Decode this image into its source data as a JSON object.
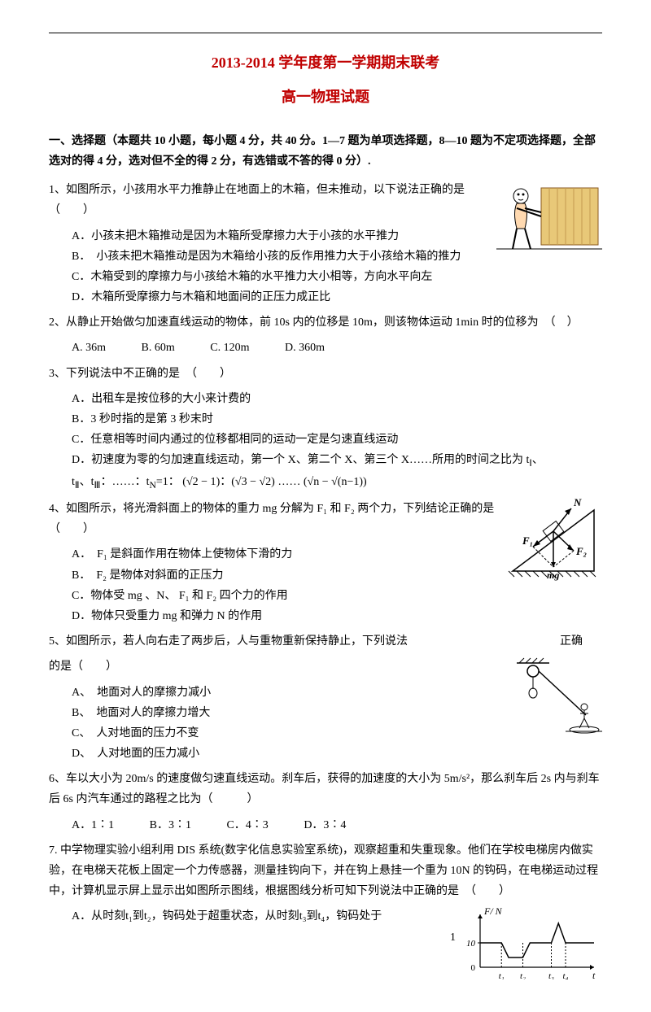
{
  "header": {
    "title": "2013-2014 学年度第一学期期末联考",
    "subtitle": "高一物理试题"
  },
  "section1": {
    "heading": "一、选择题（本题共 10 小题，每小题 4 分，共 40 分。1—7 题为单项选择题，8—10 题为不定项选择题，全部选对的得 4 分，选对但不全的得 2 分，有选错或不答的得 0 分）."
  },
  "q1": {
    "stem": "1、如图所示，小孩用水平力推静止在地面上的木箱，但未推动，以下说法正确的是　（　　）",
    "A": "A．小孩未把木箱推动是因为木箱所受摩擦力大于小孩的水平推力",
    "B": "B．　小孩未把木箱推动是因为木箱给小孩的反作用推力大于小孩给木箱的推力",
    "C": "C．木箱受到的摩擦力与小孩给木箱的水平推力大小相等，方向水平向左",
    "D": "D．木箱所受摩擦力与木箱和地面间的正压力成正比"
  },
  "q2": {
    "stem": "2、从静止开始做匀加速直线运动的物体，前 10s 内的位移是 10m，则该物体运动 1min 时的位移为　（　）",
    "A": "A. 36m",
    "B": "B. 60m",
    "C": "C. 120m",
    "D": "D. 360m"
  },
  "q3": {
    "stem": "3、下列说法中不正确的是　（　　）",
    "A": "A．出租车是按位移的大小来计费的",
    "B": "B．3 秒时指的是第 3 秒末时",
    "C": "C．任意相等时间内通过的位移都相同的运动一定是匀速直线运动",
    "D_pre": "D．初速度为零的匀加速直线运动，第一个 X、第二个 X、第三个 X……所用的时间之比为 t",
    "D_line2_pre": "t",
    "D_line2_mid": "、t",
    "D_line2_post": "：……：t",
    "D_eq": "=1：",
    "D_r1a": "√2",
    "D_r1b": " − 1",
    "D_r2a": "√3",
    "D_r2b": " − √2",
    "D_dots": " …… ",
    "D_rna": "√n",
    "D_rnb": " − √(n−1)"
  },
  "q4": {
    "stem": "4、如图所示，将光滑斜面上的物体的重力 mg 分解为 F₁ 和 F₂ 两个力，下列结论正确的是　（　　）",
    "A": "A．　F₁ 是斜面作用在物体上使物体下滑的力",
    "B": "B．　F₂ 是物体对斜面的正压力",
    "C": "C．物体受 mg 、N、 F₁ 和 F₂ 四个力的作用",
    "D": "D．物体只受重力 mg 和弹力 N 的作用"
  },
  "q5": {
    "stem_a": "5、如图所示，若人向右走了两步后，人与重物重新保持静止，下列说法",
    "stem_b": "正确",
    "stem2": "的是（　　）",
    "A": "A、　地面对人的摩擦力减小",
    "B": "B、　地面对人的摩擦力增大",
    "C": "C、　人对地面的压力不变",
    "D": "D、　人对地面的压力减小"
  },
  "q6": {
    "stem": "6、车以大小为 20m/s 的速度做匀速直线运动。刹车后，获得的加速度的大小为 5m/s²，那么刹车后 2s 内与刹车后 6s 内汽车通过的路程之比为（　　　）",
    "A": "A．1∶1",
    "B": "B．3∶1",
    "C": "C．4∶3",
    "D": "D．3∶4"
  },
  "q7": {
    "stem": "7. 中学物理实验小组利用 DIS 系统(数字化信息实验室系统)，观察超重和失重现象。他们在学校电梯房内做实验，在电梯天花板上固定一个力传感器，测量挂钩向下，并在钩上悬挂一个重为 10N 的钩码，在电梯运动过程中，计算机显示屏上显示出如图所示图线，根据图线分析可知下列说法中正确的是　（　　）",
    "A_pre": "A．从时刻",
    "A_t1": "t₁",
    "A_mid1": "到",
    "A_t2": "t₂",
    "A_mid2": "，钩码处于超重状态，从时刻",
    "A_t3": "t₃",
    "A_mid3": "到",
    "A_t4": "t₄",
    "A_post": "，钩码处于"
  },
  "chart": {
    "ylabel": "F/ N",
    "y_tick": "10",
    "y_zero": "0",
    "x_t1": "t₁",
    "x_t2": "t₂",
    "x_t3": "t₃",
    "x_t4": "t₄",
    "xlabel": "t",
    "colors": {
      "axis": "#000000",
      "line": "#000000",
      "bg": "#ffffff"
    },
    "line_points": [
      [
        0,
        10
      ],
      [
        30,
        10
      ],
      [
        40,
        4
      ],
      [
        60,
        4
      ],
      [
        70,
        10
      ],
      [
        100,
        10
      ],
      [
        110,
        18
      ],
      [
        120,
        10
      ],
      [
        160,
        10
      ]
    ],
    "y_range": [
      0,
      20
    ],
    "x_ticks_pos": [
      30,
      60,
      100,
      120
    ]
  },
  "page_num": "1",
  "figures": {
    "q1_img_w": 130,
    "q1_img_h": 95,
    "q4_img_w": 120,
    "q4_img_h": 110,
    "q5_img_w": 130,
    "q5_img_h": 100,
    "q7_img_w": 170,
    "q7_img_h": 90
  }
}
